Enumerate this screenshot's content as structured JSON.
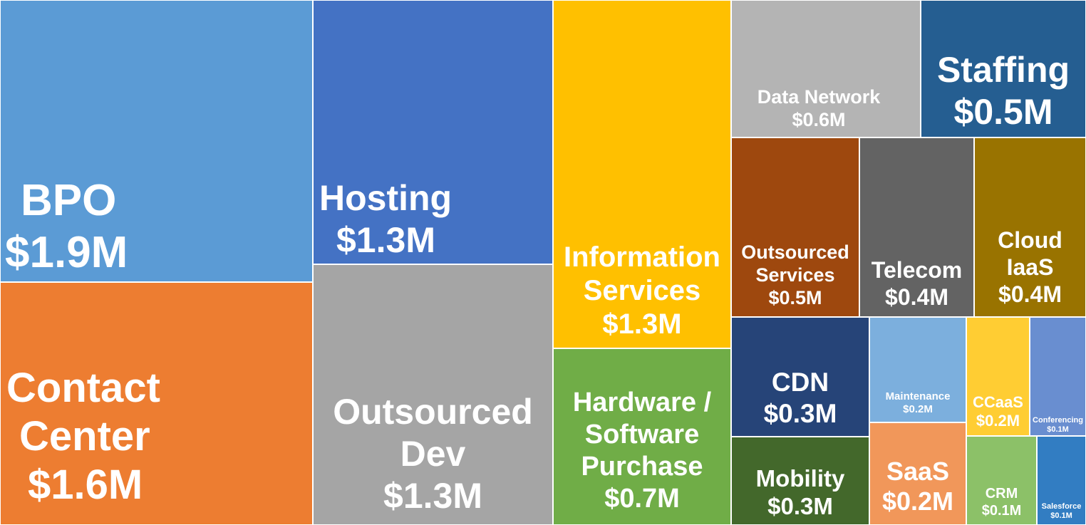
{
  "chart_data": {
    "type": "treemap",
    "unit": "$M",
    "items": [
      {
        "id": "bpo",
        "name": "BPO",
        "label_lines": [
          "BPO"
        ],
        "value_label": "$1.9M",
        "value": 1.9,
        "color": "#5B9BD5"
      },
      {
        "id": "contact-center",
        "name": "Contact Center",
        "label_lines": [
          "Contact",
          "Center"
        ],
        "value_label": "$1.6M",
        "value": 1.6,
        "color": "#ED7D31"
      },
      {
        "id": "hosting",
        "name": "Hosting",
        "label_lines": [
          "Hosting"
        ],
        "value_label": "$1.3M",
        "value": 1.3,
        "color": "#4472C4"
      },
      {
        "id": "outsourced-dev",
        "name": "Outsourced Dev",
        "label_lines": [
          "Outsourced",
          "Dev"
        ],
        "value_label": "$1.3M",
        "value": 1.3,
        "color": "#A5A5A5"
      },
      {
        "id": "information-services",
        "name": "Information Services",
        "label_lines": [
          "Information",
          "Services"
        ],
        "value_label": "$1.3M",
        "value": 1.3,
        "color": "#FFC000"
      },
      {
        "id": "hardware-software-purchase",
        "name": "Hardware / Software Purchase",
        "label_lines": [
          "Hardware /",
          "Software",
          "Purchase"
        ],
        "value_label": "$0.7M",
        "value": 0.7,
        "color": "#70AD47"
      },
      {
        "id": "data-network",
        "name": "Data Network",
        "label_lines": [
          "Data Network"
        ],
        "value_label": "$0.6M",
        "value": 0.6,
        "color": "#B4B4B4"
      },
      {
        "id": "staffing",
        "name": "Staffing",
        "label_lines": [
          "Staffing"
        ],
        "value_label": "$0.5M",
        "value": 0.5,
        "color": "#255E91"
      },
      {
        "id": "outsourced-services",
        "name": "Outsourced Services",
        "label_lines": [
          "Outsourced",
          "Services"
        ],
        "value_label": "$0.5M",
        "value": 0.5,
        "color": "#9E480E"
      },
      {
        "id": "telecom",
        "name": "Telecom",
        "label_lines": [
          "Telecom"
        ],
        "value_label": "$0.4M",
        "value": 0.4,
        "color": "#636363"
      },
      {
        "id": "cloud-iaas",
        "name": "Cloud IaaS",
        "label_lines": [
          "Cloud",
          "IaaS"
        ],
        "value_label": "$0.4M",
        "value": 0.4,
        "color": "#997300"
      },
      {
        "id": "cdn",
        "name": "CDN",
        "label_lines": [
          "CDN"
        ],
        "value_label": "$0.3M",
        "value": 0.3,
        "color": "#264478"
      },
      {
        "id": "mobility",
        "name": "Mobility",
        "label_lines": [
          "Mobility"
        ],
        "value_label": "$0.3M",
        "value": 0.3,
        "color": "#43682B"
      },
      {
        "id": "maintenance",
        "name": "Maintenance",
        "label_lines": [
          "Maintenance"
        ],
        "value_label": "$0.2M",
        "value": 0.2,
        "color": "#7CAFDD"
      },
      {
        "id": "saas",
        "name": "SaaS",
        "label_lines": [
          "SaaS"
        ],
        "value_label": "$0.2M",
        "value": 0.2,
        "color": "#F1975A"
      },
      {
        "id": "ccaas",
        "name": "CCaaS",
        "label_lines": [
          "CCaaS"
        ],
        "value_label": "$0.2M",
        "value": 0.2,
        "color": "#FFCD33"
      },
      {
        "id": "conferencing",
        "name": "Conferencing",
        "label_lines": [
          "Conferencing"
        ],
        "value_label": "$0.1M",
        "value": 0.1,
        "color": "#698ED0"
      },
      {
        "id": "crm",
        "name": "CRM",
        "label_lines": [
          "CRM"
        ],
        "value_label": "$0.1M",
        "value": 0.1,
        "color": "#8CC168"
      },
      {
        "id": "salesforce",
        "name": "Salesforce",
        "label_lines": [
          "Salesforce"
        ],
        "value_label": "$0.1M",
        "value": 0.1,
        "color": "#327DC2"
      }
    ]
  }
}
